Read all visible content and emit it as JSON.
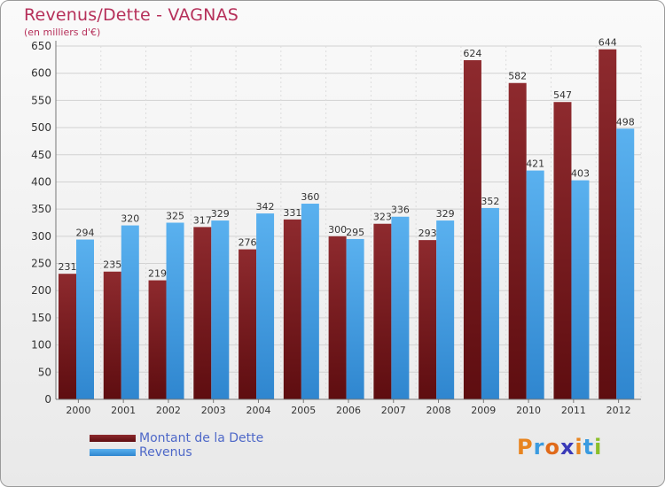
{
  "title": "Revenus/Dette - VAGNAS",
  "subtitle": "(en milliers d'€)",
  "logo_text": "Proxiti",
  "colors": {
    "title": "#b6305a",
    "dette": "#7b1a1e",
    "revenus": "#3d9be3",
    "legend_text": "#4e68c8"
  },
  "chart_data": {
    "type": "bar",
    "title": "Revenus/Dette - VAGNAS",
    "subtitle": "(en milliers d'€)",
    "categories": [
      "2000",
      "2001",
      "2002",
      "2003",
      "2004",
      "2005",
      "2006",
      "2007",
      "2008",
      "2009",
      "2010",
      "2011",
      "2012"
    ],
    "series": [
      {
        "name": "Montant de la Dette",
        "values": [
          231,
          235,
          219,
          317,
          276,
          331,
          300,
          323,
          293,
          624,
          582,
          547,
          644
        ]
      },
      {
        "name": "Revenus",
        "values": [
          294,
          320,
          325,
          329,
          342,
          360,
          295,
          336,
          329,
          352,
          421,
          403,
          498
        ]
      }
    ],
    "ylim": [
      0,
      650
    ],
    "yticks": [
      0,
      50,
      100,
      150,
      200,
      250,
      300,
      350,
      400,
      450,
      500,
      550,
      600,
      650
    ],
    "grid": true,
    "legend": "bottom-left"
  }
}
